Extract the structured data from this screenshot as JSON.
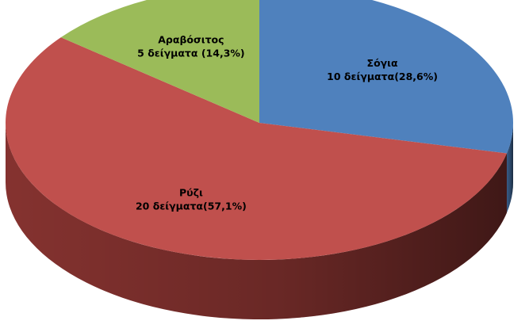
{
  "chart_data": {
    "type": "pie",
    "style": "3d",
    "slices": [
      {
        "label": "Σόγια",
        "value": 10,
        "percent": 28.6,
        "data_label": "10 δείγματα(28,6%)",
        "color": "#4f81bd",
        "side_color": "#3a5f8c"
      },
      {
        "label": "Ρύζι",
        "value": 20,
        "percent": 57.1,
        "data_label": "20 δείγματα(57,1%)",
        "color": "#c0504d",
        "side_color": "#8c3532"
      },
      {
        "label": "Αραβόσιτος",
        "value": 5,
        "percent": 14.3,
        "data_label": "5 δείγματα (14,3%)",
        "color": "#9bbb59",
        "side_color": "#6f8a3c"
      }
    ]
  }
}
